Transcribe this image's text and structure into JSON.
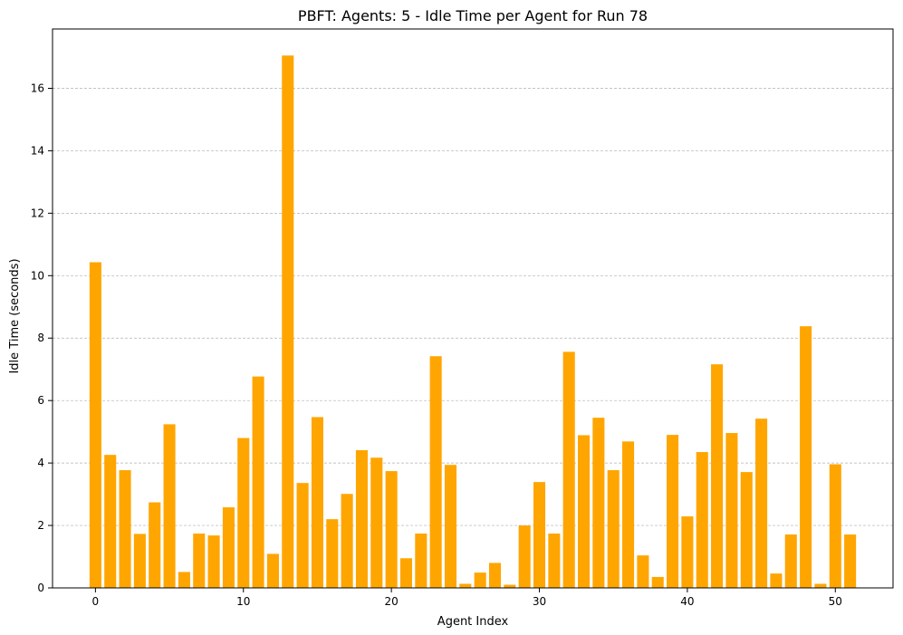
{
  "chart_data": {
    "type": "bar",
    "title": "PBFT: Agents: 5 - Idle Time per Agent for Run 78",
    "xlabel": "Agent Index",
    "ylabel": "Idle Time (seconds)",
    "x": [
      0,
      1,
      2,
      3,
      4,
      5,
      6,
      7,
      8,
      9,
      10,
      11,
      12,
      13,
      14,
      15,
      16,
      17,
      18,
      19,
      20,
      21,
      22,
      23,
      24,
      25,
      26,
      27,
      28,
      29,
      30,
      31,
      32,
      33,
      34,
      35,
      36,
      37,
      38,
      39,
      40,
      41,
      42,
      43,
      44,
      45,
      46,
      47,
      48,
      49,
      50,
      51
    ],
    "values": [
      10.43,
      4.26,
      3.77,
      1.73,
      2.74,
      5.24,
      0.51,
      1.74,
      1.68,
      2.58,
      4.8,
      6.77,
      1.09,
      17.05,
      3.36,
      5.47,
      2.2,
      3.01,
      4.41,
      4.17,
      3.74,
      0.95,
      1.74,
      7.42,
      3.94,
      0.13,
      0.49,
      0.8,
      0.1,
      2.0,
      3.39,
      1.74,
      7.56,
      4.89,
      5.45,
      3.77,
      4.69,
      1.04,
      0.35,
      4.9,
      2.29,
      4.35,
      7.16,
      4.96,
      3.71,
      5.42,
      0.46,
      1.71,
      8.38,
      0.13,
      3.96,
      1.71
    ],
    "xlim": [
      -2.9,
      53.9
    ],
    "ylim": [
      0,
      17.9
    ],
    "xticks": [
      0,
      10,
      20,
      30,
      40,
      50
    ],
    "yticks": [
      0,
      2,
      4,
      6,
      8,
      10,
      12,
      14,
      16
    ],
    "grid": "y-dashed",
    "bar_color": "#ffa500"
  }
}
